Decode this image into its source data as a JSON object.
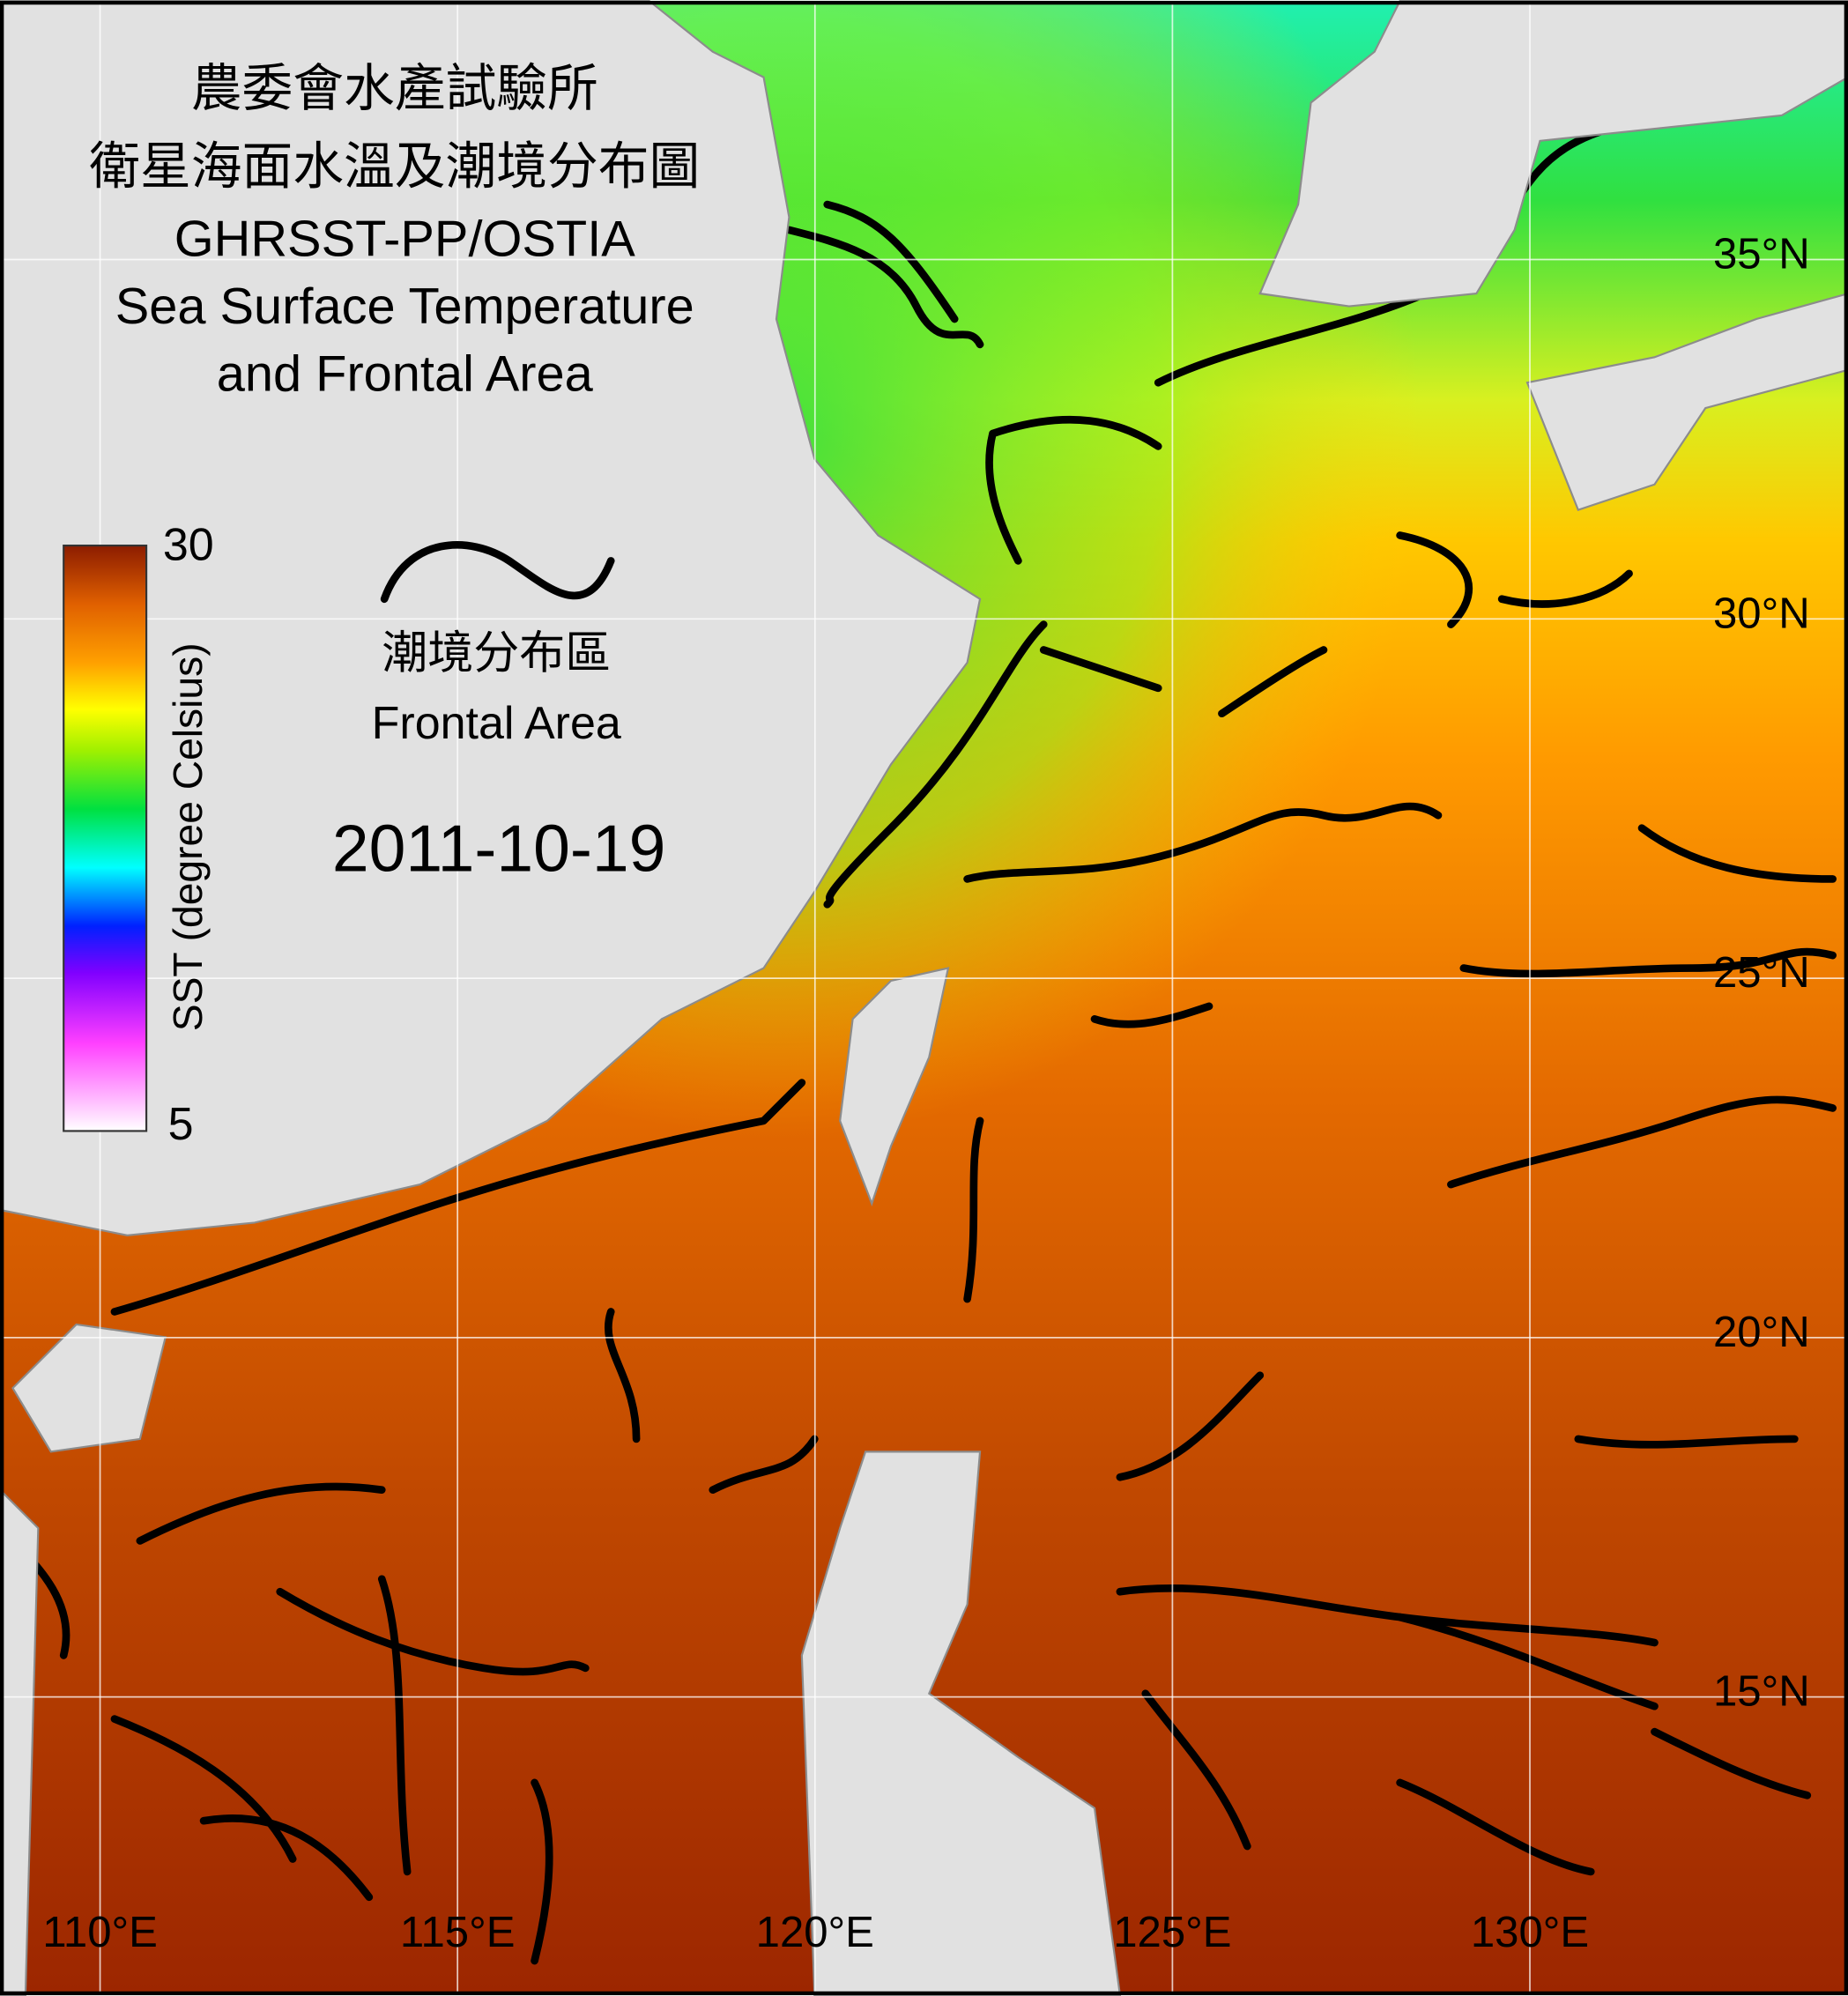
{
  "title": [
    "農委會水產試驗所",
    "衛星海面水溫及潮境分布圖",
    "GHRSST-PP/OSTIA",
    "Sea Surface Temperature",
    "and Frontal Area"
  ],
  "colorbar": {
    "label": "SST (degree Celsius)",
    "max": 30,
    "min": 5
  },
  "legend": {
    "label_zh": "潮境分布區",
    "label_en": "Frontal Area"
  },
  "date": "2011-10-19",
  "lon_lim": [
    108.6,
    134.45
  ],
  "lat_lim": [
    10.85,
    38.6
  ],
  "lon_ticks": [
    {
      "value": 110,
      "label": "110°E"
    },
    {
      "value": 115,
      "label": "115°E"
    },
    {
      "value": 120,
      "label": "120°E"
    },
    {
      "value": 125,
      "label": "125°E"
    },
    {
      "value": 130,
      "label": "130°E"
    }
  ],
  "lat_ticks": [
    {
      "value": 35,
      "label": "35°N"
    },
    {
      "value": 30,
      "label": "30°N"
    },
    {
      "value": 25,
      "label": "25°N"
    },
    {
      "value": 20,
      "label": "20°N"
    },
    {
      "value": 15,
      "label": "15°N"
    }
  ]
}
